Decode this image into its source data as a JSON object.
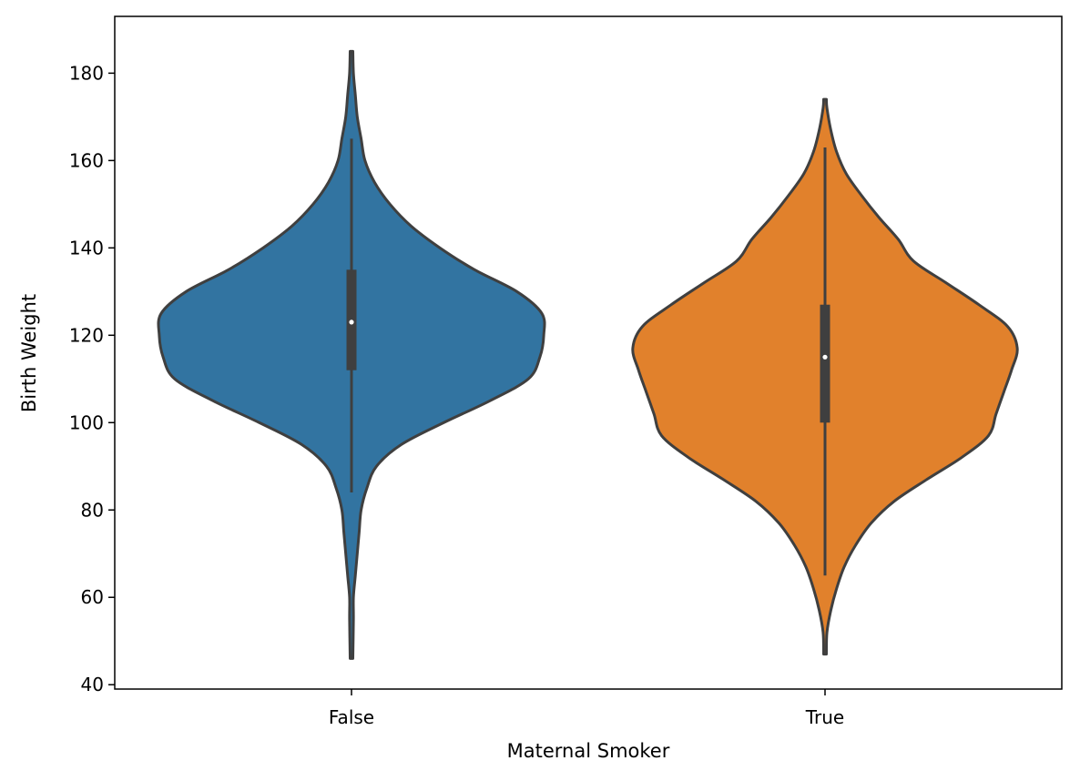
{
  "chart_data": {
    "type": "violin",
    "title": "",
    "xlabel": "Maternal Smoker",
    "ylabel": "Birth Weight",
    "ylim": [
      39,
      193
    ],
    "yticks": [
      40,
      60,
      80,
      100,
      120,
      140,
      160,
      180
    ],
    "categories": [
      "False",
      "True"
    ],
    "grid": false,
    "colors": {
      "False": "#3274a1",
      "True": "#e1812c",
      "outline": "#3f3f3f",
      "inner_box": "#3f3f3f",
      "median_dot": "#ffffff"
    },
    "violins": [
      {
        "category": "False",
        "min": 46,
        "max": 185,
        "q1": 112,
        "median": 123,
        "q3": 135,
        "whisker_low": 84,
        "whisker_high": 165,
        "density": [
          [
            46,
            0.0
          ],
          [
            55,
            0.01
          ],
          [
            60,
            0.01
          ],
          [
            65,
            0.02
          ],
          [
            70,
            0.03
          ],
          [
            75,
            0.04
          ],
          [
            80,
            0.05
          ],
          [
            85,
            0.08
          ],
          [
            90,
            0.13
          ],
          [
            95,
            0.26
          ],
          [
            100,
            0.48
          ],
          [
            105,
            0.72
          ],
          [
            110,
            0.92
          ],
          [
            115,
            0.98
          ],
          [
            120,
            1.0
          ],
          [
            125,
            0.99
          ],
          [
            130,
            0.86
          ],
          [
            135,
            0.64
          ],
          [
            140,
            0.46
          ],
          [
            145,
            0.31
          ],
          [
            150,
            0.2
          ],
          [
            155,
            0.12
          ],
          [
            160,
            0.07
          ],
          [
            165,
            0.05
          ],
          [
            170,
            0.03
          ],
          [
            175,
            0.02
          ],
          [
            180,
            0.01
          ],
          [
            185,
            0.0
          ]
        ]
      },
      {
        "category": "True",
        "min": 47,
        "max": 174,
        "q1": 100,
        "median": 115,
        "q3": 127,
        "whisker_low": 65,
        "whisker_high": 163,
        "density": [
          [
            47,
            0.0
          ],
          [
            52,
            0.01
          ],
          [
            57,
            0.03
          ],
          [
            62,
            0.06
          ],
          [
            67,
            0.1
          ],
          [
            72,
            0.16
          ],
          [
            77,
            0.24
          ],
          [
            82,
            0.36
          ],
          [
            87,
            0.53
          ],
          [
            92,
            0.71
          ],
          [
            97,
            0.85
          ],
          [
            102,
            0.89
          ],
          [
            107,
            0.93
          ],
          [
            112,
            0.97
          ],
          [
            117,
            1.0
          ],
          [
            122,
            0.95
          ],
          [
            127,
            0.8
          ],
          [
            132,
            0.63
          ],
          [
            137,
            0.46
          ],
          [
            142,
            0.38
          ],
          [
            147,
            0.28
          ],
          [
            152,
            0.19
          ],
          [
            157,
            0.11
          ],
          [
            162,
            0.06
          ],
          [
            167,
            0.03
          ],
          [
            172,
            0.01
          ],
          [
            174,
            0.0
          ]
        ]
      }
    ]
  }
}
